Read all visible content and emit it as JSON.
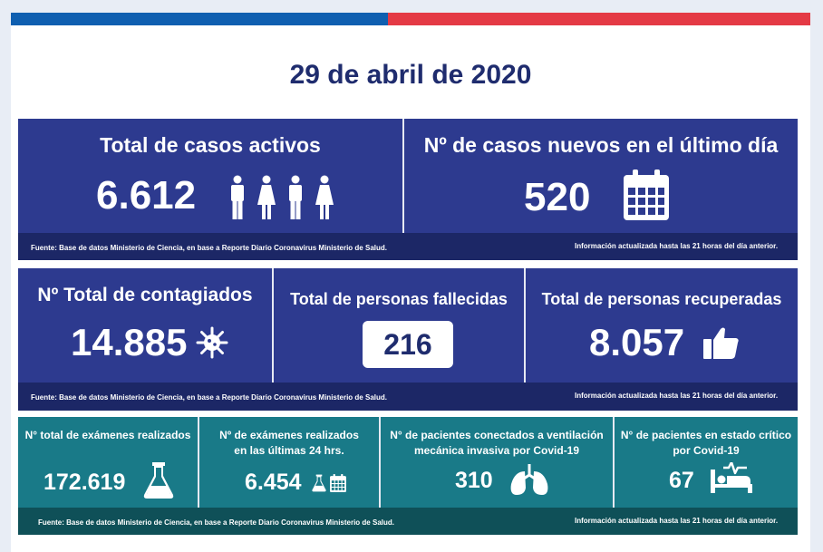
{
  "header": {
    "date": "29 de abril de 2020"
  },
  "colors": {
    "navy": "#2d3a8f",
    "teal": "#197a88",
    "flag_blue": "#0f5fb0",
    "flag_red": "#e43a45"
  },
  "row1": {
    "active": {
      "title": "Total de casos activos",
      "value": "6.612",
      "icons": [
        "man-icon",
        "woman-icon",
        "man-icon",
        "woman-icon"
      ]
    },
    "new": {
      "title": "Nº de casos nuevos en el último día",
      "value": "520",
      "icon": "calendar-icon"
    },
    "source": "Fuente: Base de datos Ministerio de Ciencia, en base a Reporte Diario Coronavirus Ministerio de Salud.",
    "updated": "Información actualizada hasta las 21 horas  del día anterior."
  },
  "row2": {
    "infected": {
      "title": "Nº Total de contagiados",
      "value": "14.885",
      "icon": "virus-icon"
    },
    "deaths": {
      "title": "Total de personas fallecidas",
      "value": "216"
    },
    "recovered": {
      "title": "Total de personas recuperadas",
      "value": "8.057",
      "icon": "thumbs-up-icon"
    },
    "source": "Fuente: Base de datos Ministerio de Ciencia, en base a Reporte Diario Coronavirus Ministerio de Salud.",
    "updated": "Información actualizada hasta las 21 horas  del día anterior."
  },
  "row3": {
    "exams_total": {
      "title": "N° total de exámenes realizados",
      "value": "172.619",
      "icon": "flask-icon"
    },
    "exams_24h": {
      "title_line1": "Nº de exámenes realizados",
      "title_line2": "en las últimas 24 hrs.",
      "value": "6.454",
      "icons": [
        "flask-icon",
        "calendar-icon"
      ]
    },
    "ventilation": {
      "title_line1": "N° de pacientes conectados a ventilación",
      "title_line2": "mecánica invasiva por Covid-19",
      "value": "310",
      "icon": "lungs-icon"
    },
    "critical": {
      "title_line1": "N° de pacientes en estado crítico",
      "title_line2": "por Covid-19",
      "value": "67",
      "icon": "hospital-bed-icon"
    },
    "source": "Fuente: Base de datos Ministerio de Ciencia, en base a Reporte Diario Coronavirus Ministerio de Salud.",
    "updated": "Información actualizada hasta las 21 horas  del día anterior."
  }
}
